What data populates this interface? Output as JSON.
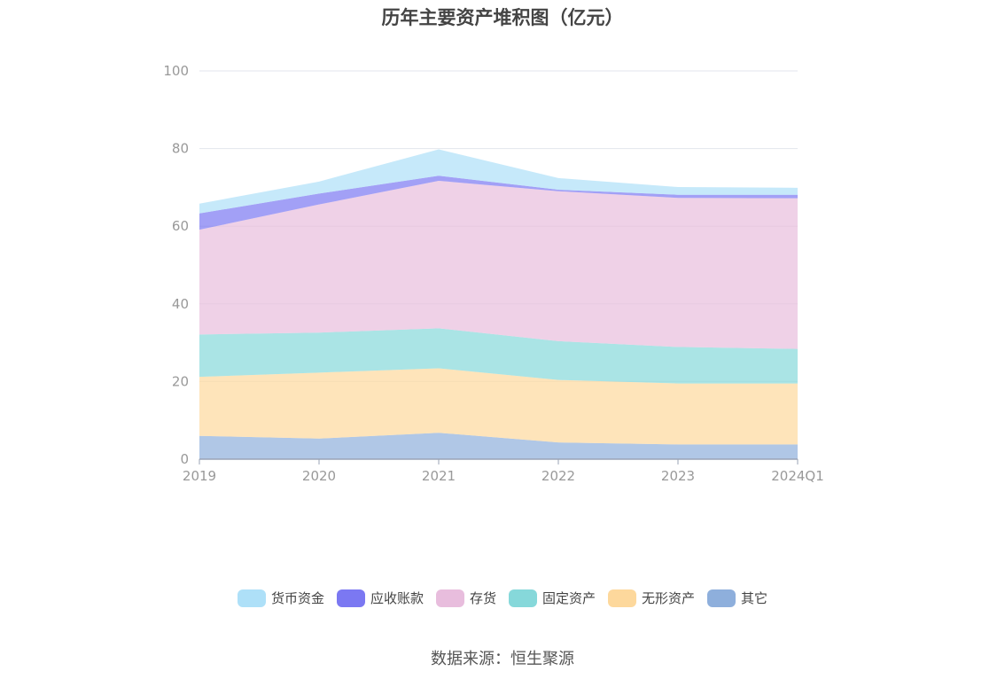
{
  "chart_data": {
    "type": "area",
    "stacked": true,
    "title": "历年主要资产堆积图（亿元）",
    "categories": [
      "2019",
      "2020",
      "2021",
      "2022",
      "2023",
      "2024Q1"
    ],
    "ylim": [
      0,
      100
    ],
    "yticks": [
      "0",
      "20",
      "40",
      "60",
      "80",
      "100"
    ],
    "grid": true,
    "legend_position": "bottom",
    "series": [
      {
        "name": "其它",
        "color": "#8eafdc",
        "values": [
          6.0,
          5.3,
          6.8,
          4.3,
          3.8,
          3.8
        ]
      },
      {
        "name": "无形资产",
        "color": "#fdd89c",
        "values": [
          15.2,
          17.0,
          16.6,
          16.1,
          15.7,
          15.7
        ]
      },
      {
        "name": "固定资产",
        "color": "#86d8da",
        "values": [
          10.9,
          10.3,
          10.3,
          10.0,
          9.4,
          8.9
        ]
      },
      {
        "name": "存货",
        "color": "#e8bddd",
        "values": [
          27.0,
          33.0,
          38.0,
          38.6,
          38.4,
          38.8
        ]
      },
      {
        "name": "应收账款",
        "color": "#7b78f2",
        "values": [
          4.2,
          2.8,
          1.3,
          0.4,
          0.8,
          0.9
        ]
      },
      {
        "name": "货币资金",
        "color": "#aee0f8",
        "values": [
          2.5,
          3.1,
          6.8,
          3.0,
          2.0,
          1.8
        ]
      }
    ]
  },
  "source": "数据来源：恒生聚源"
}
